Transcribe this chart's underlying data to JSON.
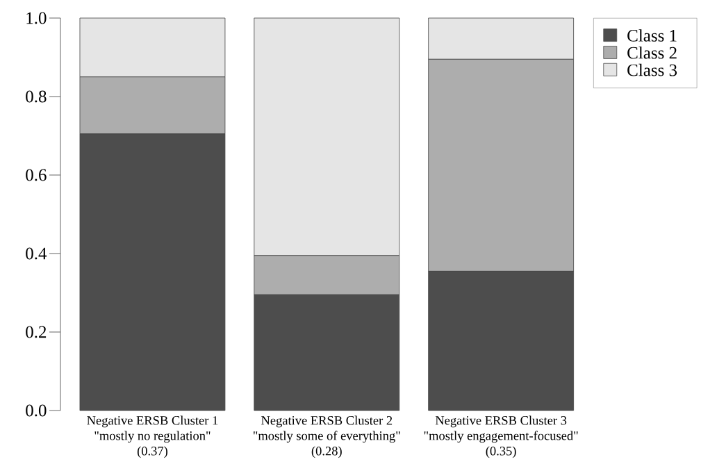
{
  "chart_data": {
    "type": "bar",
    "stacked": true,
    "categories": [
      "Negative ERSB Cluster 1\n\"mostly no regulation\"\n(0.37)",
      "Negative ERSB Cluster 2\n\"mostly some of everything\"\n(0.28)",
      "Negative ERSB Cluster 3\n\"mostly engagement-focused\"\n(0.35)"
    ],
    "series": [
      {
        "name": "Class 1",
        "color": "#4d4d4d",
        "values": [
          0.705,
          0.295,
          0.355
        ]
      },
      {
        "name": "Class 2",
        "color": "#adadad",
        "values": [
          0.145,
          0.1,
          0.54
        ]
      },
      {
        "name": "Class 3",
        "color": "#e5e5e5",
        "values": [
          0.15,
          0.605,
          0.105
        ]
      }
    ],
    "ylim": [
      0,
      1
    ],
    "yticks": [
      {
        "value": 0,
        "label": "0.0"
      },
      {
        "value": 0.2,
        "label": "0.2"
      },
      {
        "value": 0.4,
        "label": "0.4"
      },
      {
        "value": 0.6,
        "label": "0.6"
      },
      {
        "value": 0.8,
        "label": "0.8"
      },
      {
        "value": 1,
        "label": "1.0"
      }
    ],
    "grid": false,
    "legend": "top right"
  }
}
